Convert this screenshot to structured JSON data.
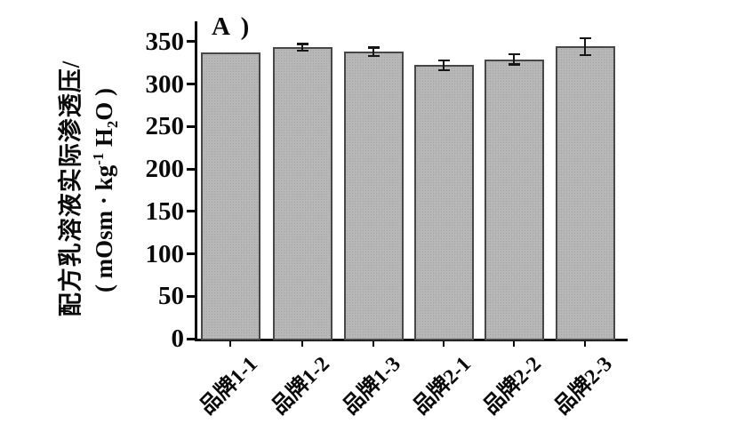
{
  "figure": {
    "panel_label": "A )",
    "ylabel_line1": "配方乳溶液实际渗透压/",
    "ylabel_line2": {
      "pre": "( mOsm · kg",
      "sup": "-1",
      "mid": " H",
      "sub": "2",
      "post": "O )"
    }
  },
  "chart_data": {
    "type": "bar",
    "title": "",
    "panel_label": "A )",
    "categories": [
      "品牌1-1",
      "品牌1-2",
      "品牌1-3",
      "品牌2-1",
      "品牌2-2",
      "品牌2-3"
    ],
    "values": [
      337,
      343,
      338,
      322,
      329,
      344
    ],
    "errors": [
      0,
      4,
      5,
      6,
      6,
      10
    ],
    "ylabel": "配方乳溶液实际渗透压/( mOsm · kg⁻¹ H₂O )",
    "xlabel": "",
    "y_ticks": [
      0,
      50,
      100,
      150,
      200,
      250,
      300,
      350
    ],
    "ylim": [
      0,
      374
    ],
    "grid": false,
    "legend": null,
    "bar_color": "#b7b7b7",
    "bar_border_color": "#474747",
    "error_bar_color": "#161616",
    "axis_color": "#0a0a0a"
  }
}
